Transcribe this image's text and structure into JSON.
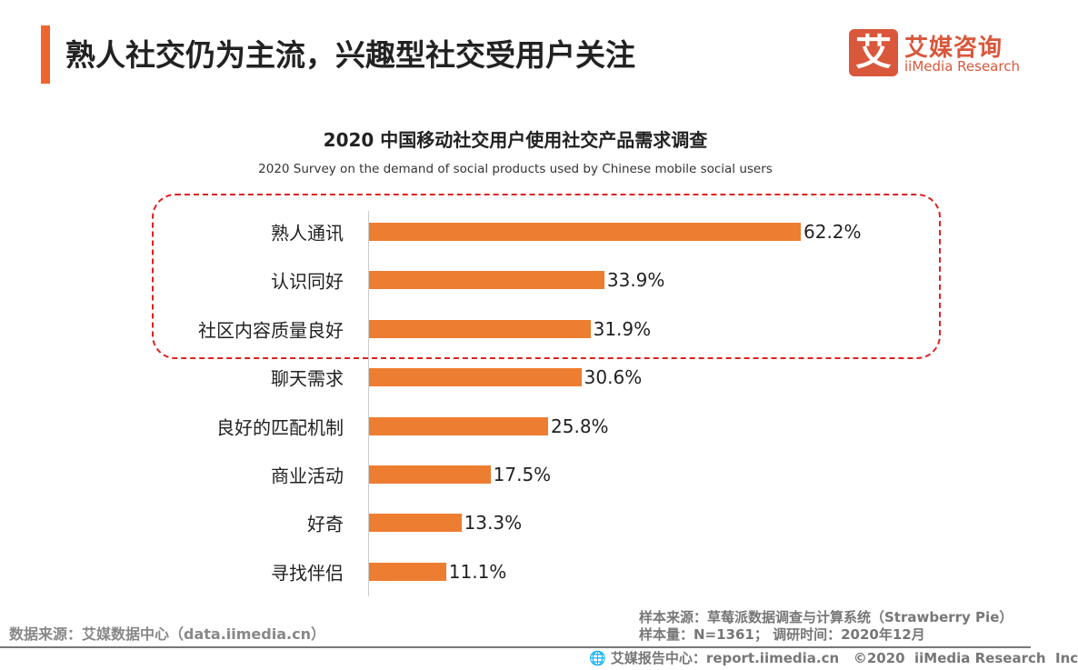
{
  "header": {
    "title": "熟人社交仍为主流，兴趣型社交受用户关注",
    "logo_cn": "艾媒咨询",
    "logo_en": "iiMedia Research",
    "logo_mark": "艾",
    "accent_color": "#f0642d"
  },
  "chart_data": {
    "type": "bar",
    "orientation": "horizontal",
    "title": "2020 中国移动社交用户使用社交产品需求调查",
    "subtitle": "2020 Survey on the demand of social products used by Chinese mobile social users",
    "categories": [
      "熟人通讯",
      "认识同好",
      "社区内容质量良好",
      "聊天需求",
      "良好的匹配机制",
      "商业活动",
      "好奇",
      "寻找伴侣"
    ],
    "values": [
      62.2,
      33.9,
      31.9,
      30.6,
      25.8,
      17.5,
      13.3,
      11.1
    ],
    "labels": [
      "62.2%",
      "33.9%",
      "31.9%",
      "30.6%",
      "25.8%",
      "17.5%",
      "13.3%",
      "11.1%"
    ],
    "unit": "%",
    "bar_color": "#ed7d31",
    "highlight": {
      "categories": [
        "熟人通讯",
        "认识同好",
        "社区内容质量良好"
      ],
      "color": "#e02020",
      "style": "dashed"
    },
    "grid": false,
    "legend": "none"
  },
  "footer": {
    "source": "数据来源：艾媒数据中心（data.iimedia.cn）",
    "sample_source": "样本来源：草莓派数据调查与计算系统（Strawberry Pie）",
    "sample_size": "样本量：N=1361； 调研时间：2020年12月",
    "report": "艾媒报告中心：report.iimedia.cn   ©2020  iiMedia Research  Inc"
  }
}
